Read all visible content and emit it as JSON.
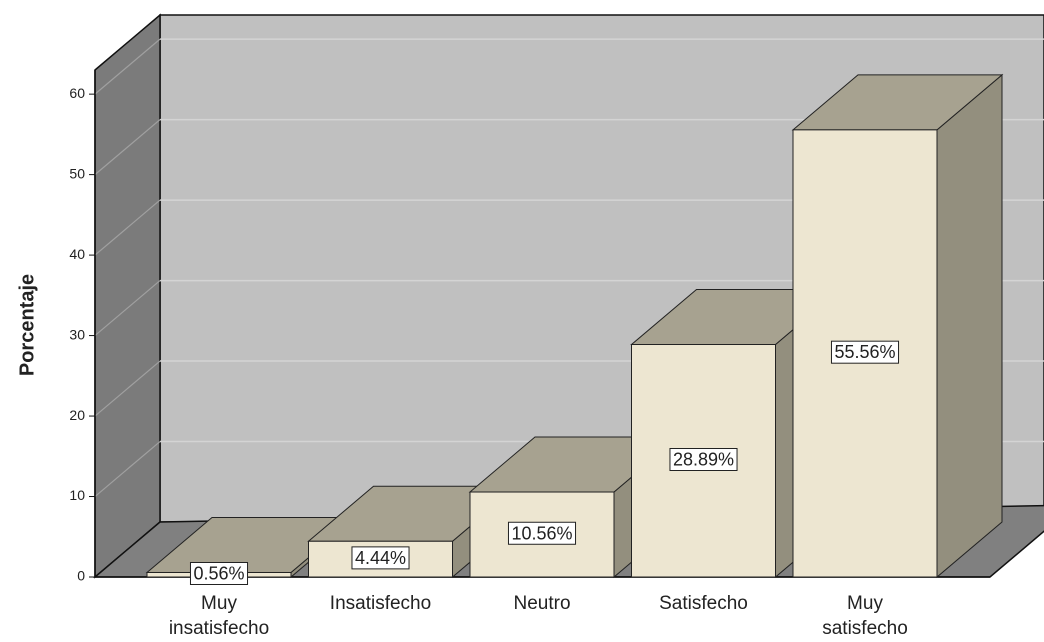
{
  "chart_data": {
    "type": "bar3d",
    "y_label": "Porcentaje",
    "categories": [
      "Muy insatisfecho",
      "Insatisfecho",
      "Neutro",
      "Satisfecho",
      "Muy satisfecho"
    ],
    "values": [
      0.56,
      4.44,
      10.56,
      28.89,
      55.56
    ],
    "value_labels": [
      "0.56%",
      "4.44%",
      "10.56%",
      "28.89%",
      "55.56%"
    ],
    "color": "#ede6d1",
    "ylim": [
      0,
      63
    ],
    "yticks": [
      0,
      10,
      20,
      30,
      40,
      50,
      60
    ],
    "grid": true
  }
}
